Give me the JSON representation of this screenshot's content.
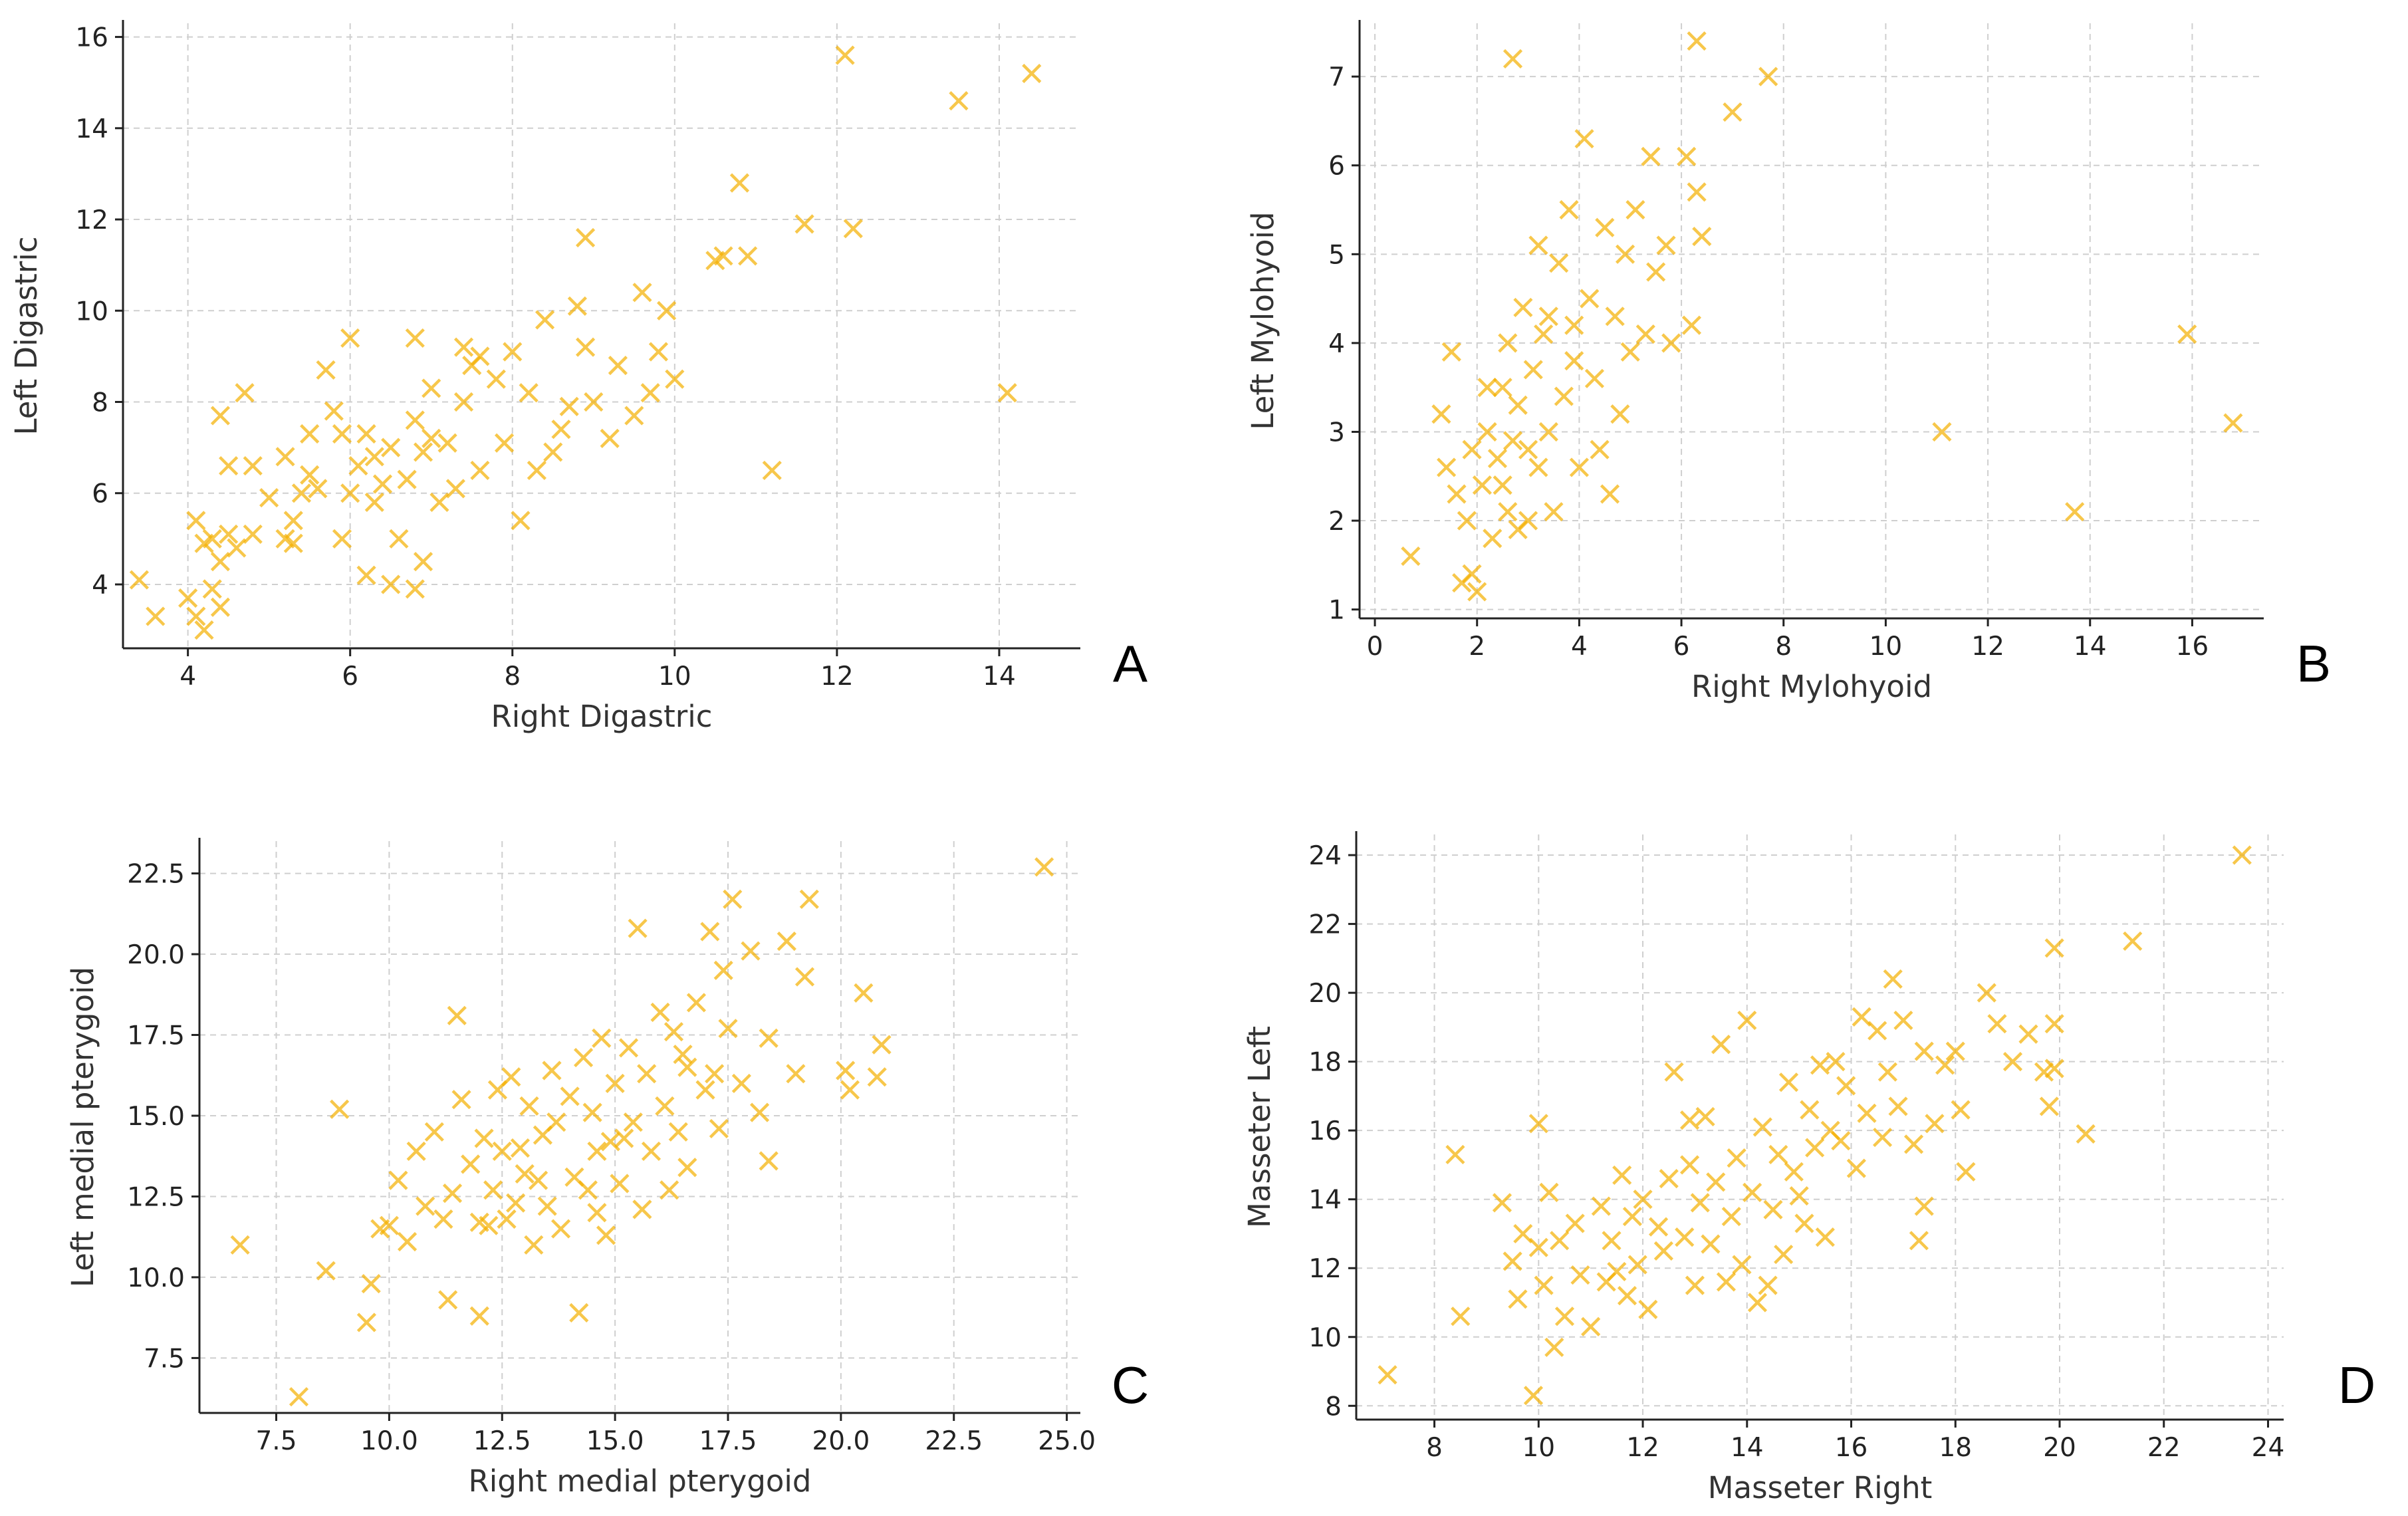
{
  "marker_color": "#f5b000",
  "chart_data": [
    {
      "type": "scatter",
      "panel": "A",
      "title": "",
      "xlabel": "Right Digastric",
      "ylabel": "Left Digastric",
      "xlim": [
        3.2,
        15.0
      ],
      "ylim": [
        2.6,
        16.3
      ],
      "xticks": [
        4,
        6,
        8,
        10,
        12,
        14
      ],
      "yticks": [
        4,
        6,
        8,
        10,
        12,
        14,
        16
      ],
      "tick_format": 0,
      "grid": true,
      "points": [
        [
          3.4,
          4.1
        ],
        [
          3.6,
          3.3
        ],
        [
          4.0,
          3.7
        ],
        [
          4.1,
          3.3
        ],
        [
          4.2,
          3.0
        ],
        [
          4.3,
          3.9
        ],
        [
          4.4,
          3.5
        ],
        [
          4.4,
          4.5
        ],
        [
          4.2,
          4.9
        ],
        [
          4.1,
          5.4
        ],
        [
          4.3,
          5.0
        ],
        [
          4.5,
          5.1
        ],
        [
          4.6,
          4.8
        ],
        [
          4.8,
          5.1
        ],
        [
          4.5,
          6.6
        ],
        [
          4.4,
          7.7
        ],
        [
          4.7,
          8.2
        ],
        [
          4.8,
          6.6
        ],
        [
          5.0,
          5.9
        ],
        [
          5.2,
          5.0
        ],
        [
          5.3,
          4.9
        ],
        [
          5.4,
          6.0
        ],
        [
          5.5,
          6.4
        ],
        [
          5.2,
          6.8
        ],
        [
          5.5,
          7.3
        ],
        [
          5.6,
          6.1
        ],
        [
          5.8,
          7.8
        ],
        [
          5.9,
          5.0
        ],
        [
          6.0,
          6.0
        ],
        [
          6.1,
          6.6
        ],
        [
          6.2,
          7.3
        ],
        [
          6.0,
          9.4
        ],
        [
          5.7,
          8.7
        ],
        [
          6.3,
          5.8
        ],
        [
          6.4,
          6.2
        ],
        [
          6.5,
          7.0
        ],
        [
          6.6,
          5.0
        ],
        [
          6.7,
          6.3
        ],
        [
          6.8,
          7.6
        ],
        [
          6.9,
          6.9
        ],
        [
          7.0,
          8.3
        ],
        [
          7.1,
          5.8
        ],
        [
          6.8,
          9.4
        ],
        [
          7.2,
          7.1
        ],
        [
          7.3,
          6.1
        ],
        [
          7.4,
          8.0
        ],
        [
          7.5,
          8.8
        ],
        [
          7.4,
          9.2
        ],
        [
          7.6,
          6.5
        ],
        [
          7.8,
          8.5
        ],
        [
          7.9,
          7.1
        ],
        [
          8.0,
          9.1
        ],
        [
          8.1,
          5.4
        ],
        [
          8.2,
          8.2
        ],
        [
          8.4,
          9.8
        ],
        [
          8.5,
          6.9
        ],
        [
          8.6,
          7.4
        ],
        [
          8.7,
          7.9
        ],
        [
          8.8,
          10.1
        ],
        [
          8.9,
          9.2
        ],
        [
          9.0,
          8.0
        ],
        [
          9.2,
          7.2
        ],
        [
          9.3,
          8.8
        ],
        [
          9.5,
          7.7
        ],
        [
          9.6,
          10.4
        ],
        [
          9.7,
          8.2
        ],
        [
          9.8,
          9.1
        ],
        [
          9.9,
          10.0
        ],
        [
          10.0,
          8.5
        ],
        [
          8.9,
          11.6
        ],
        [
          10.5,
          11.1
        ],
        [
          10.6,
          11.2
        ],
        [
          10.8,
          12.8
        ],
        [
          10.9,
          11.2
        ],
        [
          11.2,
          6.5
        ],
        [
          11.6,
          11.9
        ],
        [
          12.1,
          15.6
        ],
        [
          12.2,
          11.8
        ],
        [
          13.5,
          14.6
        ],
        [
          14.1,
          8.2
        ],
        [
          14.4,
          15.2
        ],
        [
          6.2,
          4.2
        ],
        [
          6.5,
          4.0
        ],
        [
          6.9,
          4.5
        ],
        [
          6.8,
          3.9
        ],
        [
          5.3,
          5.4
        ],
        [
          5.9,
          7.3
        ],
        [
          6.3,
          6.8
        ],
        [
          7.0,
          7.2
        ],
        [
          7.6,
          9.0
        ],
        [
          8.3,
          6.5
        ]
      ]
    },
    {
      "type": "scatter",
      "panel": "B",
      "title": "",
      "xlabel": "Right Mylohyoid",
      "ylabel": "Left Mylohyoid",
      "xlim": [
        -0.3,
        17.4
      ],
      "ylim": [
        0.9,
        7.6
      ],
      "xticks": [
        0,
        2,
        4,
        6,
        8,
        10,
        12,
        14,
        16
      ],
      "yticks": [
        1,
        2,
        3,
        4,
        5,
        6,
        7
      ],
      "tick_format": 0,
      "grid": true,
      "points": [
        [
          0.7,
          1.6
        ],
        [
          1.3,
          3.2
        ],
        [
          1.4,
          2.6
        ],
        [
          1.5,
          3.9
        ],
        [
          1.6,
          2.3
        ],
        [
          1.7,
          1.3
        ],
        [
          1.8,
          2.0
        ],
        [
          1.9,
          1.4
        ],
        [
          2.0,
          1.2
        ],
        [
          2.1,
          2.4
        ],
        [
          2.2,
          3.0
        ],
        [
          2.3,
          1.8
        ],
        [
          2.4,
          2.7
        ],
        [
          2.5,
          3.5
        ],
        [
          2.6,
          2.1
        ],
        [
          2.6,
          4.0
        ],
        [
          2.7,
          2.9
        ],
        [
          2.8,
          3.3
        ],
        [
          2.9,
          4.4
        ],
        [
          3.0,
          2.0
        ],
        [
          3.1,
          3.7
        ],
        [
          3.2,
          5.1
        ],
        [
          3.2,
          2.6
        ],
        [
          3.3,
          4.1
        ],
        [
          3.4,
          3.0
        ],
        [
          3.5,
          2.1
        ],
        [
          3.6,
          4.9
        ],
        [
          3.7,
          3.4
        ],
        [
          3.8,
          5.5
        ],
        [
          3.9,
          4.2
        ],
        [
          4.0,
          2.6
        ],
        [
          4.1,
          6.3
        ],
        [
          4.2,
          4.5
        ],
        [
          4.3,
          3.6
        ],
        [
          4.5,
          5.3
        ],
        [
          4.6,
          2.3
        ],
        [
          4.7,
          4.3
        ],
        [
          4.8,
          3.2
        ],
        [
          4.9,
          5.0
        ],
        [
          5.0,
          3.9
        ],
        [
          5.1,
          5.5
        ],
        [
          5.3,
          4.1
        ],
        [
          5.4,
          6.1
        ],
        [
          5.5,
          4.8
        ],
        [
          5.7,
          5.1
        ],
        [
          5.8,
          4.0
        ],
        [
          6.1,
          6.1
        ],
        [
          6.2,
          4.2
        ],
        [
          6.3,
          5.7
        ],
        [
          6.3,
          7.4
        ],
        [
          6.4,
          5.2
        ],
        [
          7.0,
          6.6
        ],
        [
          7.7,
          7.0
        ],
        [
          2.7,
          7.2
        ],
        [
          11.1,
          3.0
        ],
        [
          13.7,
          2.1
        ],
        [
          15.9,
          4.1
        ],
        [
          16.8,
          3.1
        ],
        [
          2.5,
          2.4
        ],
        [
          3.0,
          2.8
        ],
        [
          3.4,
          4.3
        ],
        [
          2.2,
          3.5
        ],
        [
          2.8,
          1.9
        ],
        [
          1.9,
          2.8
        ],
        [
          4.4,
          2.8
        ],
        [
          3.9,
          3.8
        ]
      ]
    },
    {
      "type": "scatter",
      "panel": "C",
      "title": "",
      "xlabel": "Right medial pterygoid",
      "ylabel": "Left medial pterygoid",
      "xlim": [
        5.8,
        25.3
      ],
      "ylim": [
        5.8,
        23.5
      ],
      "xticks": [
        7.5,
        10.0,
        12.5,
        15.0,
        17.5,
        20.0,
        22.5,
        25.0
      ],
      "yticks": [
        7.5,
        10.0,
        12.5,
        15.0,
        17.5,
        20.0,
        22.5
      ],
      "tick_format": 1,
      "grid": true,
      "points": [
        [
          6.7,
          11.0
        ],
        [
          8.0,
          6.3
        ],
        [
          8.6,
          10.2
        ],
        [
          8.9,
          15.2
        ],
        [
          9.5,
          8.6
        ],
        [
          9.6,
          9.8
        ],
        [
          9.8,
          11.5
        ],
        [
          10.0,
          11.6
        ],
        [
          10.2,
          13.0
        ],
        [
          10.4,
          11.1
        ],
        [
          10.6,
          13.9
        ],
        [
          10.8,
          12.2
        ],
        [
          11.0,
          14.5
        ],
        [
          11.2,
          11.8
        ],
        [
          11.4,
          12.6
        ],
        [
          11.5,
          18.1
        ],
        [
          11.6,
          15.5
        ],
        [
          11.8,
          13.5
        ],
        [
          12.0,
          8.8
        ],
        [
          12.1,
          14.3
        ],
        [
          12.2,
          11.6
        ],
        [
          12.3,
          12.7
        ],
        [
          12.4,
          15.8
        ],
        [
          12.5,
          13.9
        ],
        [
          12.6,
          11.8
        ],
        [
          12.7,
          16.2
        ],
        [
          12.8,
          12.3
        ],
        [
          12.9,
          14.0
        ],
        [
          13.0,
          13.2
        ],
        [
          13.1,
          15.3
        ],
        [
          13.2,
          11.0
        ],
        [
          13.4,
          14.4
        ],
        [
          13.5,
          12.2
        ],
        [
          13.6,
          16.4
        ],
        [
          13.7,
          14.8
        ],
        [
          13.8,
          11.5
        ],
        [
          14.0,
          15.6
        ],
        [
          14.1,
          13.1
        ],
        [
          14.2,
          8.9
        ],
        [
          14.3,
          16.8
        ],
        [
          14.4,
          12.7
        ],
        [
          14.5,
          15.1
        ],
        [
          14.6,
          13.9
        ],
        [
          14.7,
          17.4
        ],
        [
          14.8,
          11.3
        ],
        [
          14.9,
          14.2
        ],
        [
          15.0,
          16.0
        ],
        [
          15.1,
          12.9
        ],
        [
          15.3,
          17.1
        ],
        [
          15.4,
          14.8
        ],
        [
          15.5,
          20.8
        ],
        [
          15.6,
          12.1
        ],
        [
          15.7,
          16.3
        ],
        [
          15.8,
          13.9
        ],
        [
          16.0,
          18.2
        ],
        [
          16.1,
          15.3
        ],
        [
          16.2,
          12.7
        ],
        [
          16.3,
          17.6
        ],
        [
          16.4,
          14.5
        ],
        [
          16.5,
          16.9
        ],
        [
          16.6,
          13.4
        ],
        [
          16.8,
          18.5
        ],
        [
          17.0,
          15.8
        ],
        [
          17.1,
          20.7
        ],
        [
          17.2,
          16.3
        ],
        [
          17.3,
          14.6
        ],
        [
          17.5,
          17.7
        ],
        [
          17.6,
          21.7
        ],
        [
          17.8,
          16.0
        ],
        [
          18.0,
          20.1
        ],
        [
          18.2,
          15.1
        ],
        [
          18.4,
          17.4
        ],
        [
          18.4,
          13.6
        ],
        [
          18.8,
          20.4
        ],
        [
          19.0,
          16.3
        ],
        [
          19.2,
          19.3
        ],
        [
          19.3,
          21.7
        ],
        [
          20.1,
          16.4
        ],
        [
          20.2,
          15.8
        ],
        [
          20.5,
          18.8
        ],
        [
          20.8,
          16.2
        ],
        [
          20.9,
          17.2
        ],
        [
          24.5,
          22.7
        ],
        [
          12.0,
          11.7
        ],
        [
          13.3,
          13.0
        ],
        [
          14.6,
          12.0
        ],
        [
          15.2,
          14.3
        ],
        [
          16.6,
          16.5
        ],
        [
          17.4,
          19.5
        ],
        [
          11.3,
          9.3
        ]
      ]
    },
    {
      "type": "scatter",
      "panel": "D",
      "title": "",
      "xlabel": "Masseter Right",
      "ylabel": "Masseter Left",
      "xlim": [
        6.5,
        24.3
      ],
      "ylim": [
        7.6,
        24.6
      ],
      "xticks": [
        8,
        10,
        12,
        14,
        16,
        18,
        20,
        22,
        24
      ],
      "yticks": [
        8,
        10,
        12,
        14,
        16,
        18,
        20,
        22,
        24
      ],
      "tick_format": 0,
      "grid": true,
      "points": [
        [
          7.1,
          8.9
        ],
        [
          8.4,
          15.3
        ],
        [
          8.5,
          10.6
        ],
        [
          9.3,
          13.9
        ],
        [
          9.5,
          12.2
        ],
        [
          9.6,
          11.1
        ],
        [
          9.7,
          13.0
        ],
        [
          9.9,
          8.3
        ],
        [
          10.0,
          12.6
        ],
        [
          10.0,
          16.2
        ],
        [
          10.1,
          11.5
        ],
        [
          10.2,
          14.2
        ],
        [
          10.3,
          9.7
        ],
        [
          10.4,
          12.8
        ],
        [
          10.5,
          10.6
        ],
        [
          10.7,
          13.3
        ],
        [
          10.8,
          11.8
        ],
        [
          11.0,
          10.3
        ],
        [
          11.2,
          13.8
        ],
        [
          11.3,
          11.6
        ],
        [
          11.4,
          12.8
        ],
        [
          11.6,
          14.7
        ],
        [
          11.7,
          11.2
        ],
        [
          11.8,
          13.5
        ],
        [
          11.9,
          12.1
        ],
        [
          12.0,
          14.0
        ],
        [
          12.1,
          10.8
        ],
        [
          12.3,
          13.2
        ],
        [
          12.4,
          12.5
        ],
        [
          12.5,
          14.6
        ],
        [
          12.6,
          17.7
        ],
        [
          12.8,
          12.9
        ],
        [
          12.9,
          15.0
        ],
        [
          13.0,
          11.5
        ],
        [
          13.1,
          13.9
        ],
        [
          13.2,
          16.4
        ],
        [
          13.3,
          12.7
        ],
        [
          13.4,
          14.5
        ],
        [
          13.5,
          18.5
        ],
        [
          13.6,
          11.6
        ],
        [
          13.7,
          13.5
        ],
        [
          13.8,
          15.2
        ],
        [
          13.9,
          12.1
        ],
        [
          14.0,
          19.2
        ],
        [
          14.1,
          14.2
        ],
        [
          14.2,
          11.0
        ],
        [
          14.3,
          16.1
        ],
        [
          14.5,
          13.7
        ],
        [
          14.6,
          15.3
        ],
        [
          14.7,
          12.4
        ],
        [
          14.8,
          17.4
        ],
        [
          14.9,
          14.8
        ],
        [
          15.1,
          13.3
        ],
        [
          15.2,
          16.6
        ],
        [
          15.3,
          15.5
        ],
        [
          15.4,
          17.9
        ],
        [
          15.5,
          12.9
        ],
        [
          15.6,
          16.0
        ],
        [
          15.7,
          18.0
        ],
        [
          15.8,
          15.7
        ],
        [
          15.9,
          17.3
        ],
        [
          16.1,
          14.9
        ],
        [
          16.2,
          19.3
        ],
        [
          16.3,
          16.5
        ],
        [
          16.5,
          18.9
        ],
        [
          16.7,
          17.7
        ],
        [
          16.8,
          20.4
        ],
        [
          16.9,
          16.7
        ],
        [
          17.0,
          19.2
        ],
        [
          17.2,
          15.6
        ],
        [
          17.3,
          12.8
        ],
        [
          17.4,
          18.3
        ],
        [
          17.6,
          16.2
        ],
        [
          17.8,
          17.9
        ],
        [
          18.0,
          18.3
        ],
        [
          18.2,
          14.8
        ],
        [
          18.6,
          20.0
        ],
        [
          18.8,
          19.1
        ],
        [
          19.1,
          18.0
        ],
        [
          19.4,
          18.8
        ],
        [
          19.7,
          17.7
        ],
        [
          19.8,
          16.7
        ],
        [
          19.9,
          19.1
        ],
        [
          19.9,
          21.3
        ],
        [
          20.5,
          15.9
        ],
        [
          21.4,
          21.5
        ],
        [
          23.5,
          24.0
        ],
        [
          12.9,
          16.3
        ],
        [
          14.4,
          11.5
        ],
        [
          15.0,
          14.1
        ],
        [
          11.5,
          11.9
        ],
        [
          16.6,
          15.8
        ],
        [
          17.4,
          13.8
        ],
        [
          18.1,
          16.6
        ],
        [
          19.9,
          17.8
        ]
      ]
    }
  ]
}
